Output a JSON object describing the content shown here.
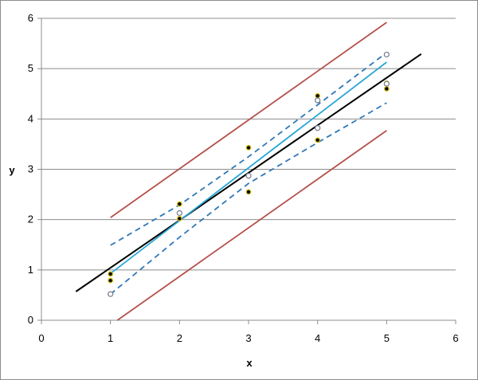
{
  "chart_data": {
    "type": "scatter",
    "title": "",
    "xlabel": "x",
    "ylabel": "y",
    "xlim": [
      0,
      6
    ],
    "ylim": [
      0,
      6
    ],
    "x_ticks": [
      "0",
      "1",
      "2",
      "3",
      "4",
      "5",
      "6"
    ],
    "y_ticks": [
      "0",
      "1",
      "2",
      "3",
      "4",
      "5",
      "6"
    ],
    "grid": "horizontal major gridlines",
    "legend": "none",
    "colors": {
      "true_line": "#000000",
      "fitted_line": "#2aa7d6",
      "confidence_band": "#2f78b7",
      "prediction_band": "#b5504b",
      "filled_point": "#000000",
      "filled_point_edge": "#d6c21c",
      "open_point": "#7a8290"
    },
    "series": [
      {
        "kind": "points-filled",
        "points": [
          [
            1,
            0.92
          ],
          [
            1,
            0.79
          ],
          [
            2,
            2.31
          ],
          [
            2,
            2.02
          ],
          [
            3,
            3.43
          ],
          [
            3,
            2.55
          ],
          [
            4,
            4.46
          ],
          [
            4,
            3.58
          ],
          [
            5,
            4.71
          ],
          [
            5,
            4.6
          ]
        ]
      },
      {
        "kind": "points-open",
        "points": [
          [
            1,
            0.52
          ],
          [
            2,
            2.13
          ],
          [
            3,
            2.87
          ],
          [
            4,
            3.82
          ],
          [
            4,
            4.37
          ],
          [
            5,
            5.28
          ],
          [
            5,
            4.7
          ]
        ]
      },
      {
        "kind": "line",
        "style": "solid",
        "color_key": "true_line",
        "points": [
          [
            0.5,
            0.57
          ],
          [
            5.5,
            5.29
          ]
        ]
      },
      {
        "kind": "line",
        "style": "solid",
        "color_key": "fitted_line",
        "points": [
          [
            1,
            0.93
          ],
          [
            5,
            5.13
          ]
        ]
      },
      {
        "kind": "line",
        "style": "dashed",
        "color_key": "confidence_band",
        "points": [
          [
            1,
            1.49
          ],
          [
            2,
            2.29
          ],
          [
            3,
            3.25
          ],
          [
            4,
            4.28
          ],
          [
            5,
            5.32
          ]
        ]
      },
      {
        "kind": "line",
        "style": "dashed",
        "color_key": "confidence_band",
        "points": [
          [
            1,
            0.52
          ],
          [
            2,
            1.65
          ],
          [
            3,
            2.72
          ],
          [
            4,
            3.53
          ],
          [
            5,
            4.32
          ]
        ]
      },
      {
        "kind": "line",
        "style": "solid",
        "color_key": "prediction_band",
        "points": [
          [
            1,
            2.04
          ],
          [
            5,
            5.92
          ]
        ]
      },
      {
        "kind": "line",
        "style": "solid",
        "color_key": "prediction_band",
        "points": [
          [
            1.1,
            0.0
          ],
          [
            5,
            3.77
          ]
        ]
      }
    ]
  }
}
